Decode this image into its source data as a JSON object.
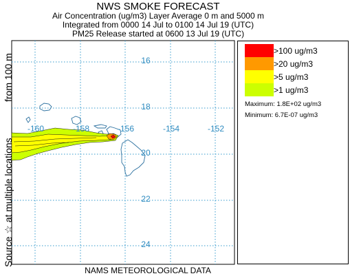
{
  "header": {
    "title": "NWS SMOKE FORECAST",
    "line1": "Air Concentration (ug/m3) Layer Average    0 m and  5000 m",
    "line2": "Integrated from 0000 14 Jul to 0100 14 Jul 19 (UTC)",
    "line3": "PM25 Release started at 0600 13 Jul 19 (UTC)"
  },
  "side_labels": {
    "from": "from   100 m",
    "source": "Source ☆    at multiple locations"
  },
  "map": {
    "lat_labels": [
      "24",
      "22",
      "20",
      "18",
      "16"
    ],
    "lon_labels": [
      "-160",
      "-158",
      "-156",
      "-154",
      "-152"
    ],
    "gridline_color": "#3399cc",
    "coastline_color": "#2a6f9e",
    "label_color": "#2e8bc0"
  },
  "legend": {
    "items": [
      {
        "label": ">100 ug/m3",
        "color": "#ff0000"
      },
      {
        "label": ">20 ug/m3",
        "color": "#ff9900"
      },
      {
        "label": ">5 ug/m3",
        "color": "#ffff00"
      },
      {
        "label": ">1 ug/m3",
        "color": "#ccff00"
      }
    ],
    "maximum": "Maximum: 1.8E+02 ug/m3",
    "minimum": "Minimum: 6.7E-07 ug/m3"
  },
  "footer": "NAMS METEOROLOGICAL DATA"
}
